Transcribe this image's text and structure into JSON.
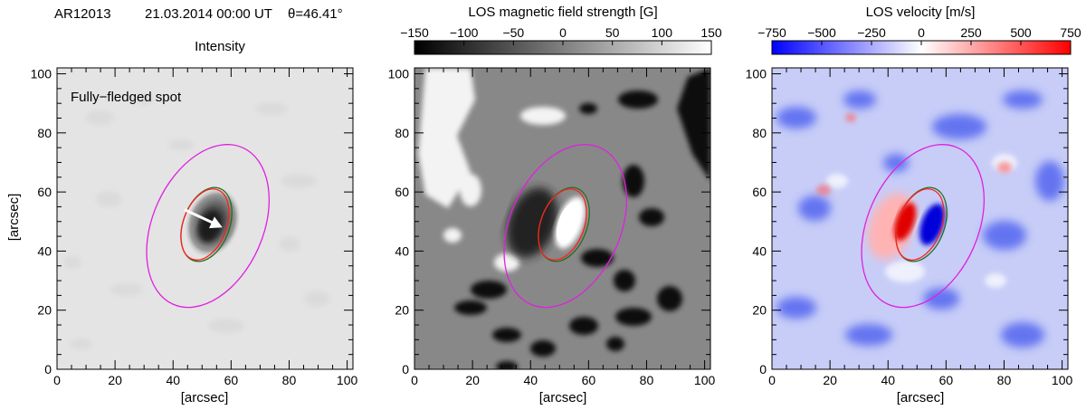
{
  "header": {
    "region": "AR12013",
    "datetime": "21.03.2014 00:00 UT",
    "theta": "θ=46.41°"
  },
  "panels": [
    {
      "id": "intensity",
      "title": "Intensity",
      "annotation": "Fully−fledged spot",
      "ylabel": "[arcsec]",
      "xlabel": "[arcsec]"
    },
    {
      "id": "magnetic",
      "title": "LOS magnetic field strength [G]",
      "xlabel": "[arcsec]"
    },
    {
      "id": "velocity",
      "title": "LOS velocity [m/s]",
      "xlabel": "[arcsec]"
    }
  ],
  "colorbars": {
    "magnetic": {
      "range": [
        -150,
        150
      ],
      "ticks": [
        "−150",
        "−100",
        "−50",
        "0",
        "50",
        "100",
        "150"
      ],
      "colors": [
        "#000000",
        "#ffffff"
      ]
    },
    "velocity": {
      "range": [
        -750,
        750
      ],
      "ticks": [
        "−750",
        "−500",
        "−250",
        "0",
        "250",
        "500",
        "750"
      ],
      "colors": [
        "#0000ff",
        "#ffffff",
        "#ff0000"
      ]
    }
  },
  "chart_data": [
    {
      "type": "heatmap",
      "title": "Intensity",
      "xlabel": "[arcsec]",
      "ylabel": "[arcsec]",
      "xlim": [
        0,
        102
      ],
      "ylim": [
        0,
        102
      ],
      "xticks": [
        0,
        20,
        40,
        60,
        80,
        100
      ],
      "yticks": [
        0,
        20,
        40,
        60,
        80,
        100
      ],
      "spot_center": [
        52,
        49
      ],
      "contours": {
        "outer_magenta": {
          "center": [
            52,
            48.5
          ],
          "radii": [
            19,
            29
          ],
          "tilt_deg": 24,
          "color": "#e020e0"
        },
        "green": {
          "center": [
            51.5,
            49
          ],
          "radii": [
            8,
            13
          ],
          "tilt_deg": 20,
          "color": "#207020"
        },
        "red": {
          "center": [
            51,
            49
          ],
          "radii": [
            7.5,
            12.5
          ],
          "tilt_deg": 20,
          "color": "#ff2020"
        }
      },
      "arrow": {
        "from": [
          44,
          54
        ],
        "to": [
          57,
          48
        ],
        "color": "#ffffff"
      }
    },
    {
      "type": "heatmap",
      "title": "LOS magnetic field strength [G]",
      "xlabel": "[arcsec]",
      "xlim": [
        0,
        102
      ],
      "ylim": [
        0,
        102
      ],
      "xticks": [
        0,
        20,
        40,
        60,
        80,
        100
      ],
      "yticks": [
        0,
        20,
        40,
        60,
        80,
        100
      ],
      "color_range": [
        -150,
        150
      ]
    },
    {
      "type": "heatmap",
      "title": "LOS velocity [m/s]",
      "xlabel": "[arcsec]",
      "xlim": [
        0,
        102
      ],
      "ylim": [
        0,
        102
      ],
      "xticks": [
        0,
        20,
        40,
        60,
        80,
        100
      ],
      "yticks": [
        0,
        20,
        40,
        60,
        80,
        100
      ],
      "color_range": [
        -750,
        750
      ]
    }
  ]
}
